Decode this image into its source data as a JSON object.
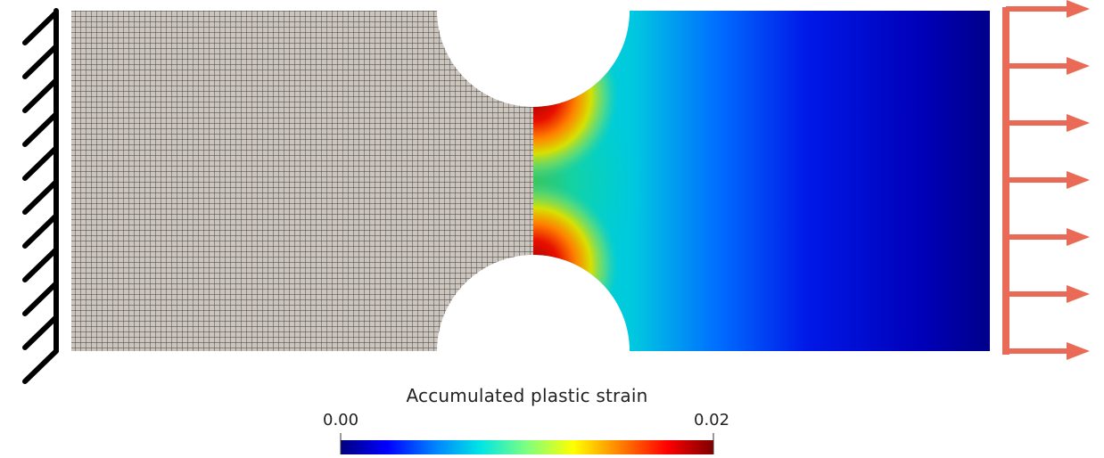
{
  "colorbar": {
    "title": "Accumulated plastic strain",
    "min_label": "0.00",
    "max_label": "0.02",
    "min_value": 0.0,
    "max_value": 0.02,
    "colormap": "jet",
    "stops": [
      "#00007f",
      "#0000ff",
      "#0080ff",
      "#00e5e5",
      "#7fff7f",
      "#ffff00",
      "#ff8000",
      "#ff0000",
      "#7f0000"
    ]
  },
  "colors": {
    "mesh_fill": "#c8c2ba",
    "mesh_lines": "#3a3a3a",
    "load_arrows": "#e96a56",
    "fixed_support": "#000000",
    "strain_low": "#00007f",
    "strain_high": "#b00000"
  },
  "boundary_conditions": {
    "left": "fixed support (hatched clamp)",
    "right": "uniform tensile traction (7 arrows)"
  }
}
